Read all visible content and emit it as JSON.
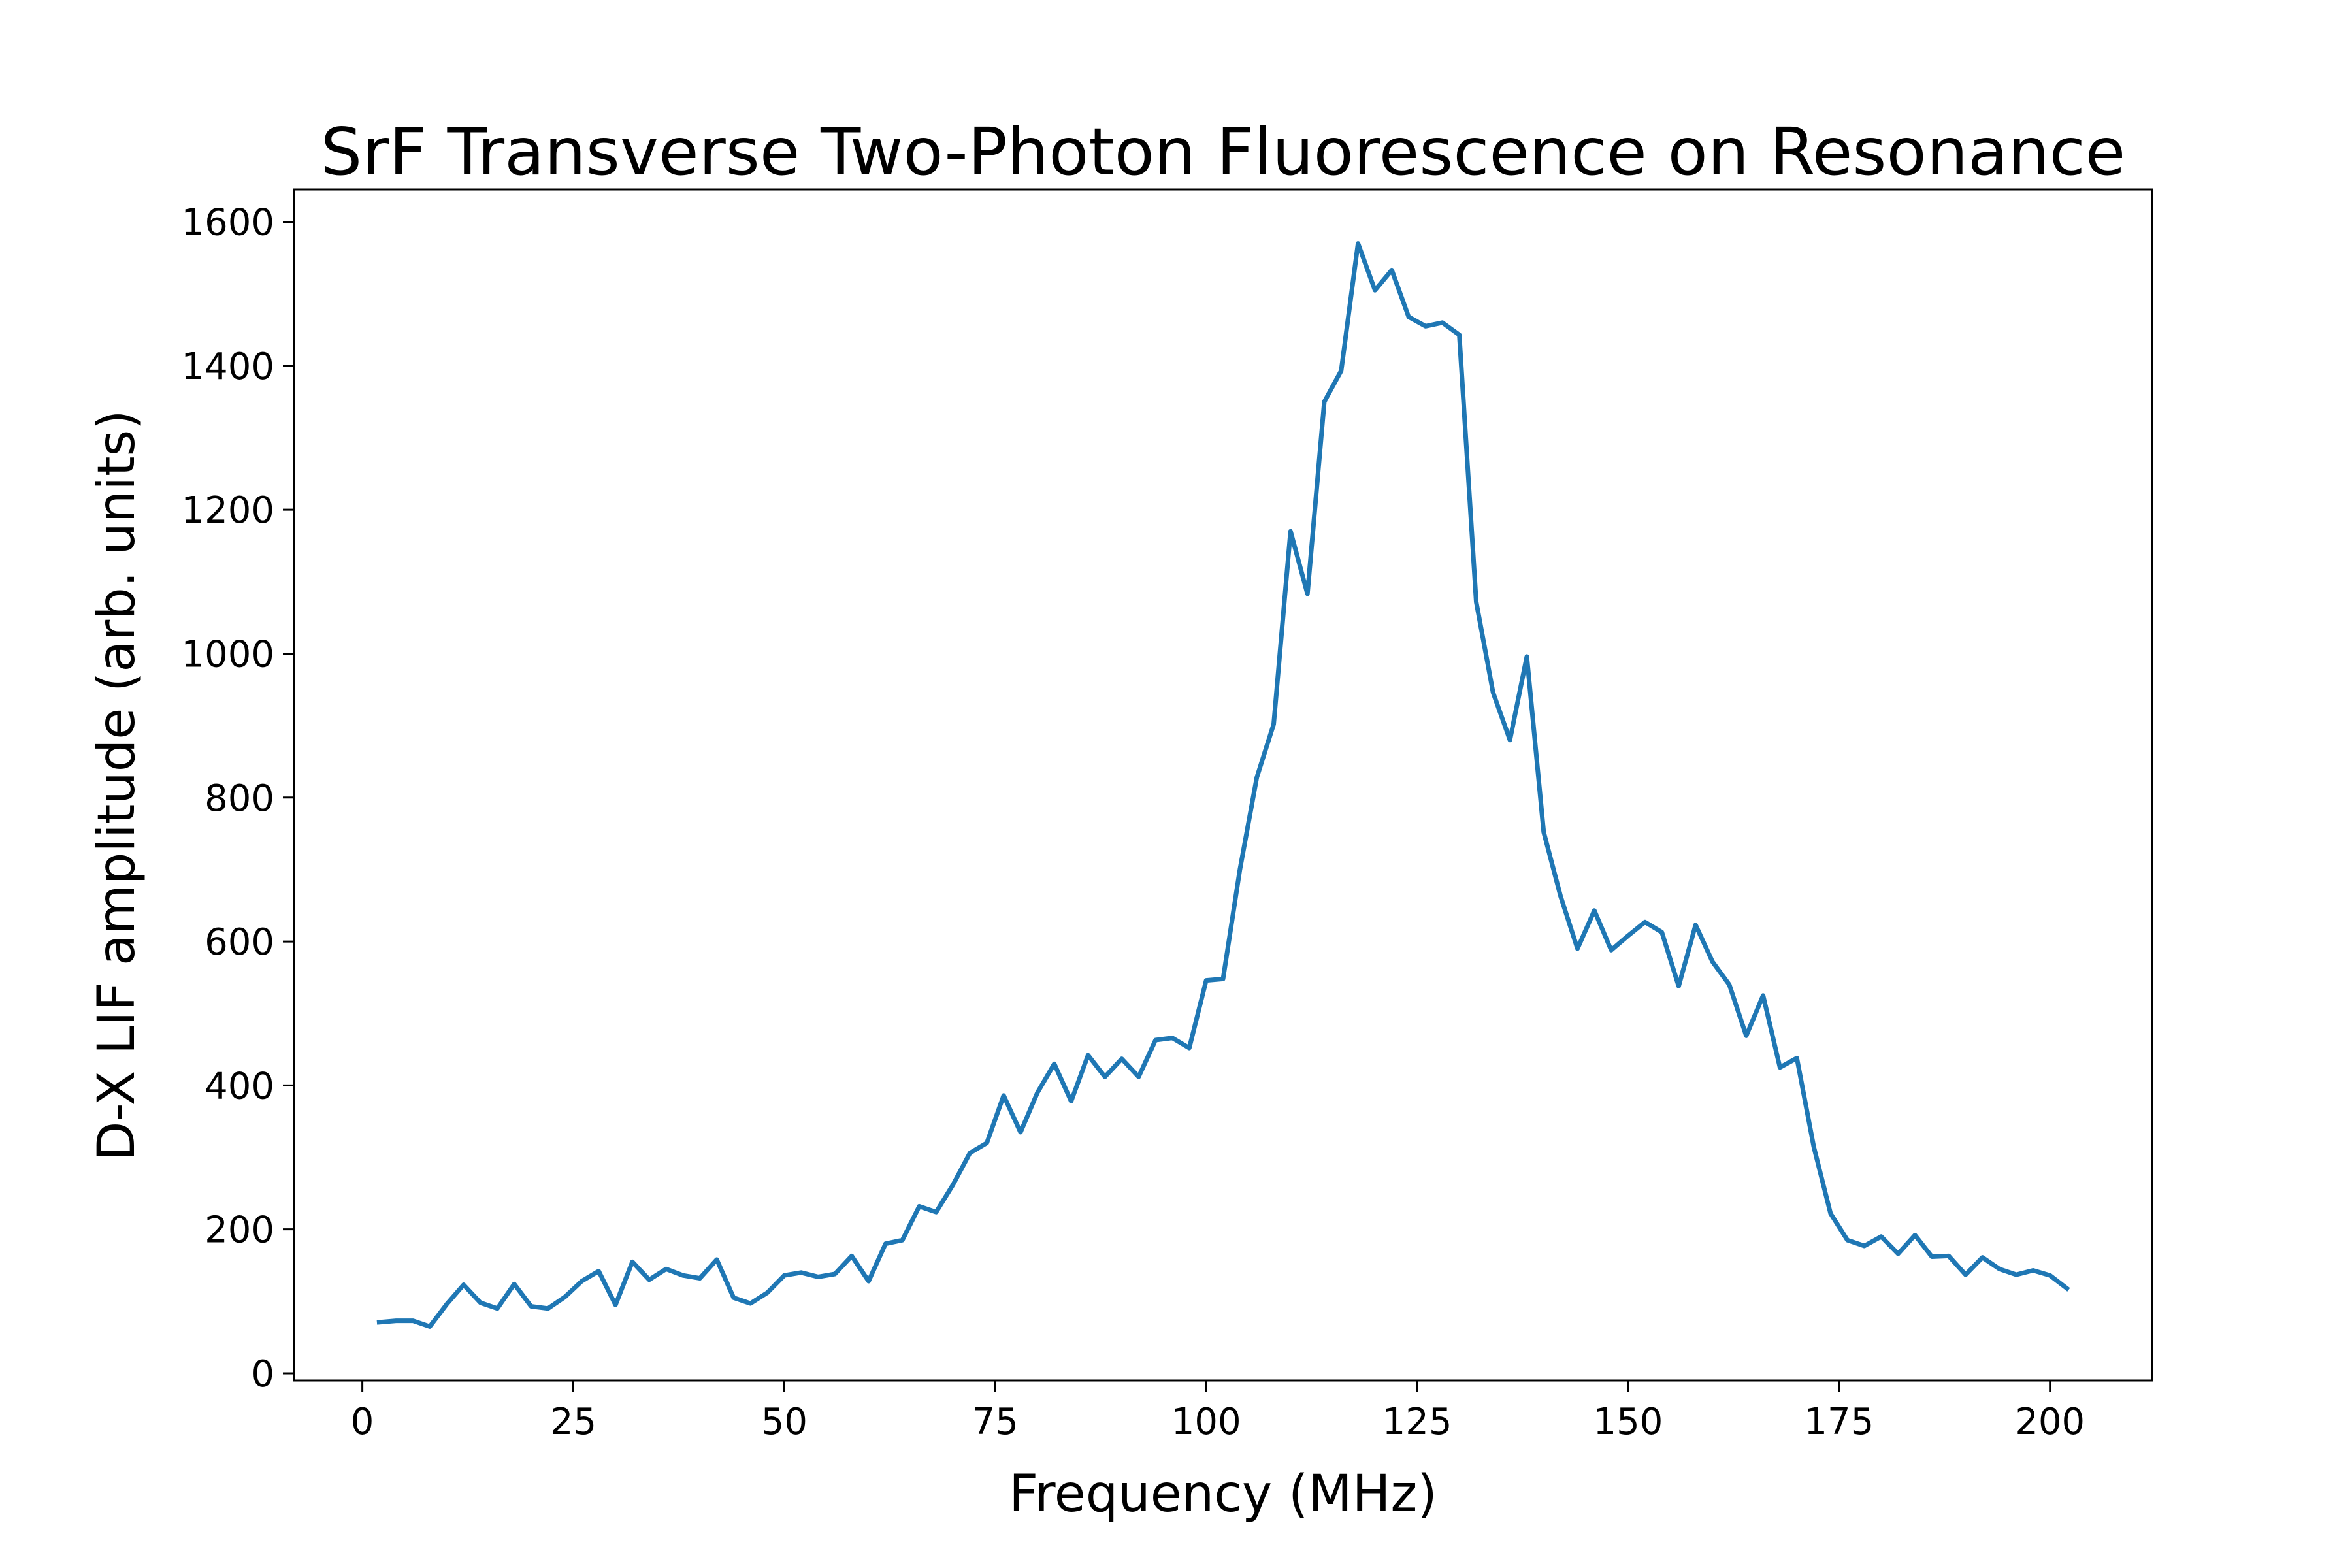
{
  "chart_data": {
    "type": "line",
    "title": "SrF Transverse Two-Photon Fluorescence on Resonance",
    "xlabel": "Frequency (MHz)",
    "ylabel": "D-X LIF amplitude (arb. units)",
    "xlim": [
      -8.1,
      212.1
    ],
    "ylim": [
      -10,
      1645
    ],
    "x_ticks": [
      0,
      25,
      50,
      75,
      100,
      125,
      150,
      175,
      200
    ],
    "y_ticks": [
      0,
      200,
      400,
      600,
      800,
      1000,
      1200,
      1400,
      1600
    ],
    "grid": false,
    "legend": "none",
    "line_color": "#1f77b4",
    "series": [
      {
        "x": [
          2,
          4,
          6,
          8,
          10,
          12,
          14,
          16,
          18,
          20,
          22,
          24,
          26,
          28,
          30,
          32,
          34,
          36,
          38,
          40,
          42,
          44,
          46,
          48,
          50,
          52,
          54,
          56,
          58,
          60,
          62,
          64,
          66,
          68,
          70,
          72,
          74,
          76,
          78,
          80,
          82,
          84,
          86,
          88,
          90,
          92,
          94,
          96,
          98,
          100,
          102,
          104,
          106,
          108,
          110,
          112,
          114,
          116,
          118,
          120,
          122,
          124,
          126,
          128,
          130,
          132,
          134,
          136,
          138,
          140,
          142,
          144,
          146,
          148,
          150,
          152,
          154,
          156,
          158,
          160,
          162,
          164,
          166,
          168,
          170,
          172,
          174,
          176,
          178,
          180,
          182,
          184,
          186,
          188,
          190,
          192,
          194,
          196,
          198,
          200,
          202
        ],
        "values": [
          71,
          73,
          73,
          65,
          96,
          123,
          98,
          90,
          124,
          93,
          90,
          106,
          128,
          142,
          95,
          155,
          130,
          145,
          136,
          132,
          158,
          105,
          97,
          112,
          136,
          140,
          134,
          138,
          163,
          128,
          180,
          185,
          232,
          224,
          262,
          306,
          320,
          386,
          335,
          390,
          430,
          378,
          442,
          412,
          437,
          412,
          463,
          466,
          452,
          546,
          548,
          700,
          828,
          902,
          1170,
          1083,
          1350,
          1393,
          1570,
          1505,
          1533,
          1468,
          1455,
          1460,
          1443,
          1072,
          946,
          880,
          996,
          752,
          663,
          590,
          643,
          588,
          608,
          627,
          613,
          538,
          623,
          572,
          540,
          469,
          525,
          425,
          438,
          315,
          222,
          185,
          177,
          190,
          166,
          192,
          162,
          163,
          137,
          161,
          145,
          137,
          143,
          136,
          118
        ]
      }
    ]
  }
}
